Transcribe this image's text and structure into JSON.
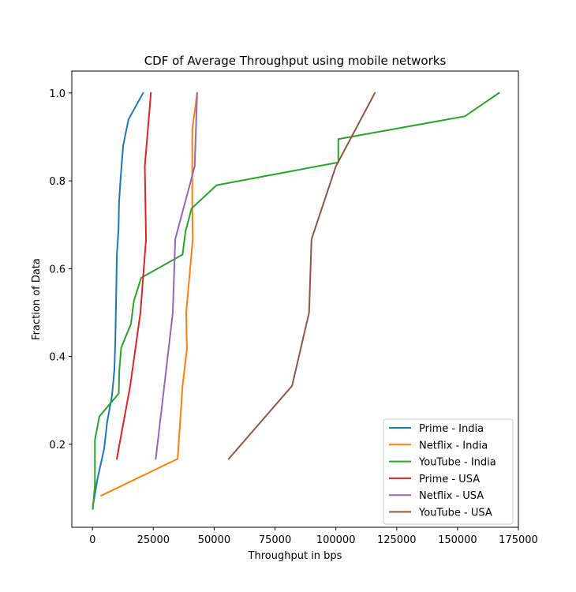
{
  "chart_data": {
    "type": "line",
    "title": "CDF of Average Throughput using mobile networks",
    "xlabel": "Throughput in bps",
    "ylabel": "Fraction of Data",
    "xlim": [
      -8500,
      175000
    ],
    "ylim": [
      0.011,
      1.05
    ],
    "xticks": [
      0,
      25000,
      50000,
      75000,
      100000,
      125000,
      150000,
      175000
    ],
    "xtick_labels": [
      "0",
      "25000",
      "50000",
      "75000",
      "100000",
      "125000",
      "150000",
      "175000"
    ],
    "yticks": [
      0.2,
      0.4,
      0.6,
      0.8,
      1.0
    ],
    "ytick_labels": [
      "0.2",
      "0.4",
      "0.6",
      "0.8",
      "1.0"
    ],
    "grid": false,
    "legend_position": "bottom-right",
    "series": [
      {
        "name": "Prime - India",
        "color": "#1f77b4",
        "points": [
          [
            200,
            0.06
          ],
          [
            2000,
            0.12
          ],
          [
            4800,
            0.19
          ],
          [
            6000,
            0.25
          ],
          [
            8000,
            0.31
          ],
          [
            9000,
            0.37
          ],
          [
            9400,
            0.44
          ],
          [
            9600,
            0.5
          ],
          [
            9800,
            0.56
          ],
          [
            10000,
            0.63
          ],
          [
            10700,
            0.69
          ],
          [
            10900,
            0.75
          ],
          [
            11600,
            0.81
          ],
          [
            12600,
            0.88
          ],
          [
            14800,
            0.94
          ],
          [
            20800,
            1.0
          ]
        ]
      },
      {
        "name": "Netflix - India",
        "color": "#ff7f0e",
        "points": [
          [
            3600,
            0.083
          ],
          [
            35000,
            0.167
          ],
          [
            37000,
            0.333
          ],
          [
            38800,
            0.417
          ],
          [
            38500,
            0.5
          ],
          [
            41200,
            0.667
          ],
          [
            41000,
            0.75
          ],
          [
            41000,
            0.917
          ],
          [
            43000,
            1.0
          ]
        ]
      },
      {
        "name": "YouTube - India",
        "color": "#2ca02c",
        "points": [
          [
            100,
            0.053
          ],
          [
            1000,
            0.105
          ],
          [
            1000,
            0.21
          ],
          [
            2800,
            0.263
          ],
          [
            10800,
            0.316
          ],
          [
            11000,
            0.368
          ],
          [
            11800,
            0.42
          ],
          [
            15800,
            0.474
          ],
          [
            17000,
            0.526
          ],
          [
            20000,
            0.579
          ],
          [
            37000,
            0.632
          ],
          [
            38200,
            0.684
          ],
          [
            40700,
            0.737
          ],
          [
            51000,
            0.79
          ],
          [
            101000,
            0.842
          ],
          [
            101000,
            0.895
          ],
          [
            153000,
            0.947
          ],
          [
            167000,
            1.0
          ]
        ]
      },
      {
        "name": "Prime - USA",
        "color": "#d62728",
        "points": [
          [
            10000,
            0.167
          ],
          [
            15500,
            0.333
          ],
          [
            19700,
            0.5
          ],
          [
            22000,
            0.667
          ],
          [
            21500,
            0.833
          ],
          [
            24000,
            1.0
          ]
        ]
      },
      {
        "name": "Netflix - USA",
        "color": "#9467bd",
        "points": [
          [
            26000,
            0.167
          ],
          [
            29500,
            0.333
          ],
          [
            33000,
            0.5
          ],
          [
            34000,
            0.667
          ],
          [
            42000,
            0.833
          ],
          [
            43000,
            1.0
          ]
        ]
      },
      {
        "name": "YouTube - USA",
        "color": "#8c564b",
        "points": [
          [
            56000,
            0.167
          ],
          [
            82000,
            0.333
          ],
          [
            89000,
            0.5
          ],
          [
            90000,
            0.667
          ],
          [
            100000,
            0.833
          ],
          [
            116000,
            1.0
          ]
        ]
      }
    ]
  }
}
